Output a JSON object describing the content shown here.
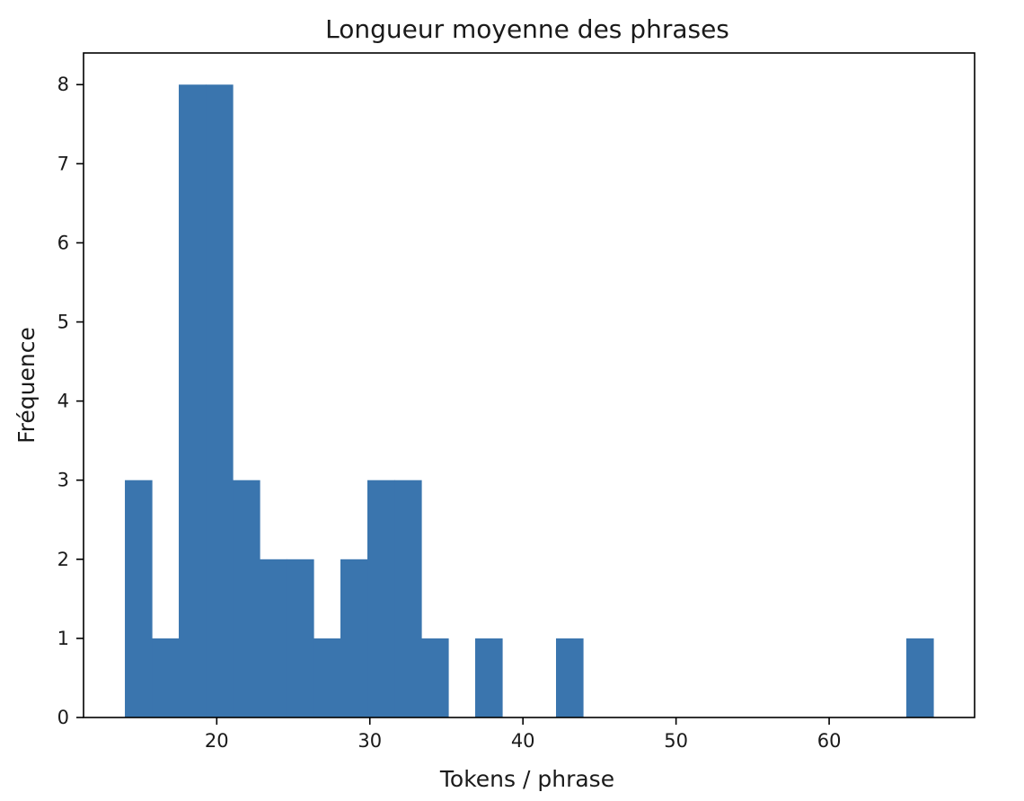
{
  "chart_data": {
    "type": "bar",
    "title": "Longueur moyenne des phrases",
    "xlabel": "Tokens / phrase",
    "ylabel": "Fréquence",
    "bin_edges": [
      14.0,
      15.76,
      17.52,
      19.28,
      21.04,
      22.8,
      24.56,
      26.32,
      28.08,
      29.84,
      31.6,
      33.36,
      35.12,
      36.88,
      38.64,
      40.4,
      42.16,
      43.92,
      45.68,
      47.44,
      49.2,
      50.96,
      52.72,
      54.48,
      56.24,
      58.0,
      59.76,
      61.52,
      63.28,
      65.04,
      66.8
    ],
    "values": [
      3,
      1,
      8,
      8,
      3,
      2,
      2,
      1,
      2,
      3,
      3,
      1,
      0,
      1,
      0,
      0,
      1,
      0,
      0,
      0,
      0,
      0,
      0,
      0,
      0,
      0,
      0,
      0,
      0,
      1
    ],
    "xlim": [
      11.3,
      69.5
    ],
    "ylim": [
      0,
      8.4
    ],
    "xticks": [
      20,
      30,
      40,
      50,
      60
    ],
    "yticks": [
      0,
      1,
      2,
      3,
      4,
      5,
      6,
      7,
      8
    ],
    "bar_color": "#3a75ae",
    "grid": false
  }
}
